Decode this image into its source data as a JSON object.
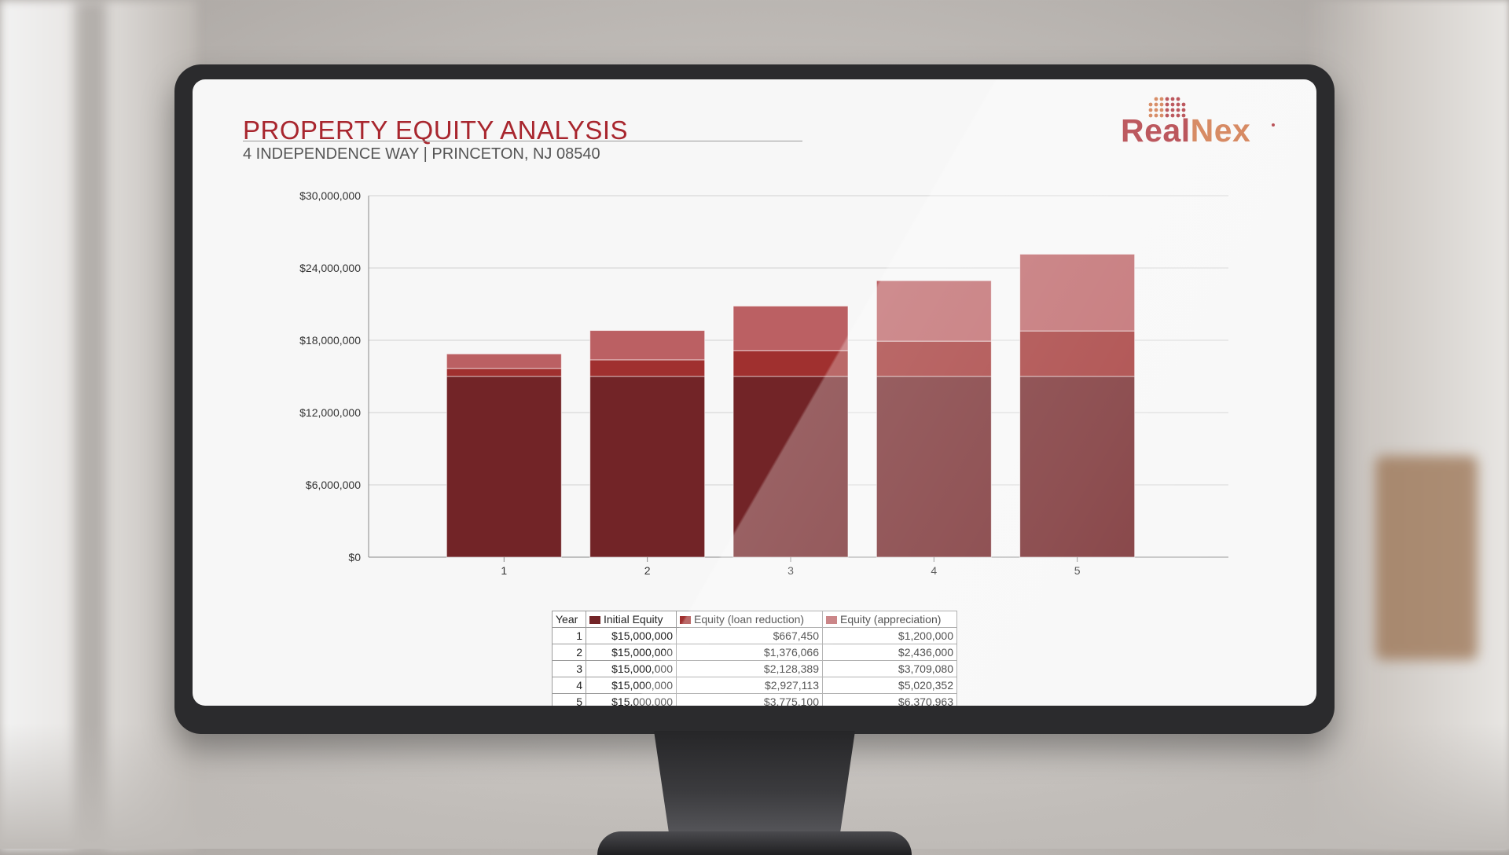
{
  "header": {
    "title": "PROPERTY EQUITY ANALYSIS",
    "subtitle": "4 INDEPENDENCE WAY | PRINCETON, NJ 08540"
  },
  "logo": {
    "text_a": "Real",
    "text_b": "Nex"
  },
  "colors": {
    "initial_equity": "#722427",
    "loan_reduction": "#a0302f",
    "appreciation": "#bb6063",
    "brand_red": "#a8262e",
    "brand_orange": "#cc6b3a"
  },
  "chart_data": {
    "type": "bar",
    "stacked": true,
    "categories": [
      "1",
      "2",
      "3",
      "4",
      "5"
    ],
    "series": [
      {
        "name": "Initial Equity",
        "values": [
          15000000,
          15000000,
          15000000,
          15000000,
          15000000
        ]
      },
      {
        "name": "Equity (loan reduction)",
        "values": [
          667450,
          1376066,
          2128389,
          2927113,
          3775100
        ]
      },
      {
        "name": "Equity (appreciation)",
        "values": [
          1200000,
          2436000,
          3709080,
          5020352,
          6370963
        ]
      }
    ],
    "yticks": [
      "$30,000,000",
      "$24,000,000",
      "$18,000,000",
      "$12,000,000",
      "$6,000,000",
      "$0"
    ],
    "ylim": [
      0,
      30000000
    ],
    "grid": true
  },
  "table": {
    "headers": [
      "Year",
      "Initial Equity",
      "Equity (loan reduction)",
      "Equity (appreciation)"
    ],
    "rows": [
      [
        "1",
        "$15,000,000",
        "$667,450",
        "$1,200,000"
      ],
      [
        "2",
        "$15,000,000",
        "$1,376,066",
        "$2,436,000"
      ],
      [
        "3",
        "$15,000,000",
        "$2,128,389",
        "$3,709,080"
      ],
      [
        "4",
        "$15,000,000",
        "$2,927,113",
        "$5,020,352"
      ],
      [
        "5",
        "$15,000,000",
        "$3,775,100",
        "$6,370,963"
      ]
    ]
  }
}
